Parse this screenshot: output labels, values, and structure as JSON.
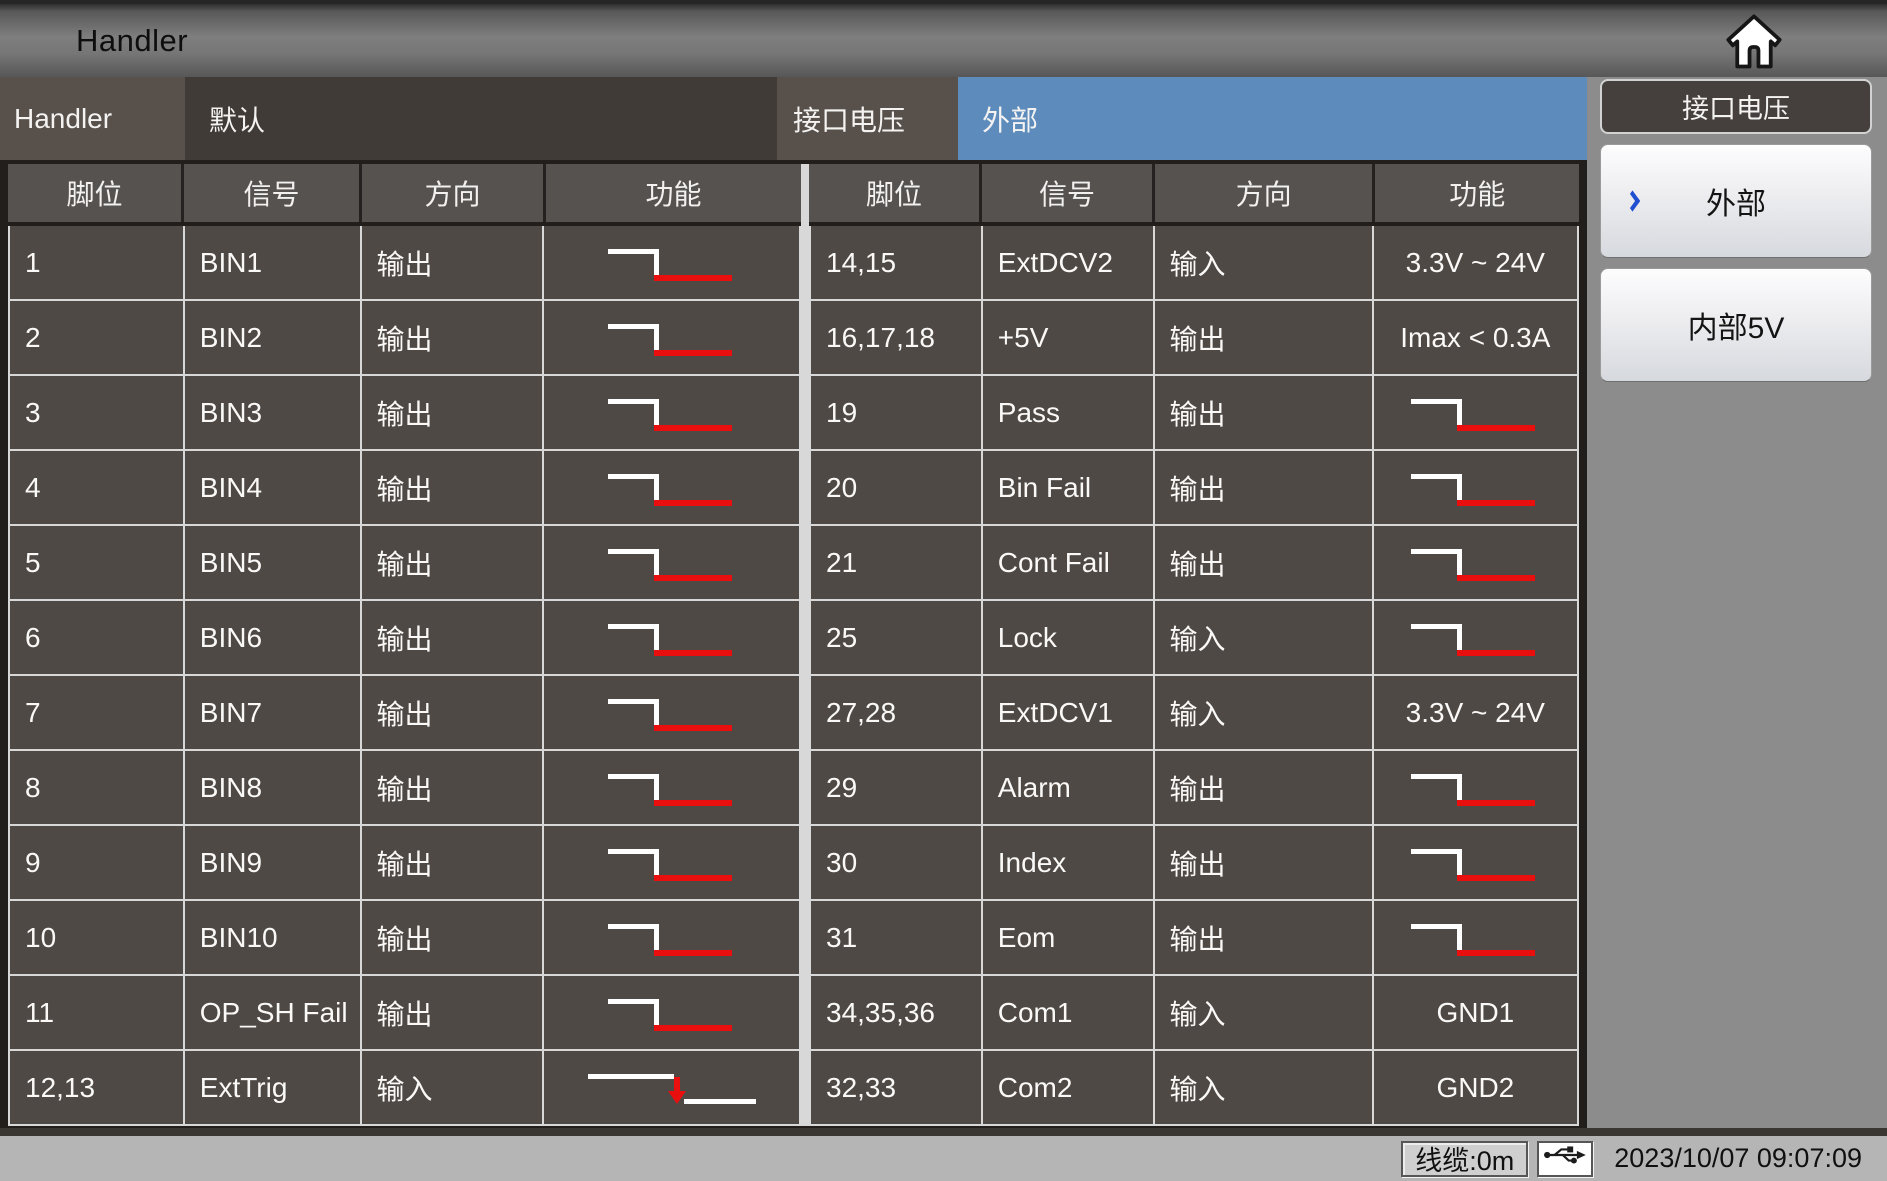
{
  "titlebar": {
    "title": "Handler"
  },
  "tabbar": {
    "handler_tab": "Handler",
    "preset_value": "默认",
    "port_voltage_label": "接口电压",
    "port_voltage_value": "外部"
  },
  "sidebar": {
    "header": "接口电压",
    "buttons": [
      {
        "label": "外部",
        "selected": true
      },
      {
        "label": "内部5V",
        "selected": false
      }
    ]
  },
  "tables": {
    "columns": [
      "脚位",
      "信号",
      "方向",
      "功能"
    ],
    "left": {
      "rows": [
        {
          "pin": "1",
          "signal": "BIN1",
          "direction": "输出",
          "function": {
            "type": "icon",
            "name": "active-low-pulse-icon"
          }
        },
        {
          "pin": "2",
          "signal": "BIN2",
          "direction": "输出",
          "function": {
            "type": "icon",
            "name": "active-low-pulse-icon"
          }
        },
        {
          "pin": "3",
          "signal": "BIN3",
          "direction": "输出",
          "function": {
            "type": "icon",
            "name": "active-low-pulse-icon"
          }
        },
        {
          "pin": "4",
          "signal": "BIN4",
          "direction": "输出",
          "function": {
            "type": "icon",
            "name": "active-low-pulse-icon"
          }
        },
        {
          "pin": "5",
          "signal": "BIN5",
          "direction": "输出",
          "function": {
            "type": "icon",
            "name": "active-low-pulse-icon"
          }
        },
        {
          "pin": "6",
          "signal": "BIN6",
          "direction": "输出",
          "function": {
            "type": "icon",
            "name": "active-low-pulse-icon"
          }
        },
        {
          "pin": "7",
          "signal": "BIN7",
          "direction": "输出",
          "function": {
            "type": "icon",
            "name": "active-low-pulse-icon"
          }
        },
        {
          "pin": "8",
          "signal": "BIN8",
          "direction": "输出",
          "function": {
            "type": "icon",
            "name": "active-low-pulse-icon"
          }
        },
        {
          "pin": "9",
          "signal": "BIN9",
          "direction": "输出",
          "function": {
            "type": "icon",
            "name": "active-low-pulse-icon"
          }
        },
        {
          "pin": "10",
          "signal": "BIN10",
          "direction": "输出",
          "function": {
            "type": "icon",
            "name": "active-low-pulse-icon"
          }
        },
        {
          "pin": "11",
          "signal": "OP_SH Fail",
          "direction": "输出",
          "function": {
            "type": "icon",
            "name": "active-low-pulse-icon"
          }
        },
        {
          "pin": "12,13",
          "signal": "ExtTrig",
          "direction": "输入",
          "function": {
            "type": "icon",
            "name": "falling-edge-trigger-icon"
          }
        }
      ]
    },
    "right": {
      "rows": [
        {
          "pin": "14,15",
          "signal": "ExtDCV2",
          "direction": "输入",
          "function": {
            "type": "text",
            "value": "3.3V ~ 24V"
          }
        },
        {
          "pin": "16,17,18",
          "signal": "+5V",
          "direction": "输出",
          "function": {
            "type": "text",
            "value": "Imax < 0.3A"
          }
        },
        {
          "pin": "19",
          "signal": "Pass",
          "direction": "输出",
          "function": {
            "type": "icon",
            "name": "active-low-pulse-icon"
          }
        },
        {
          "pin": "20",
          "signal": "Bin Fail",
          "direction": "输出",
          "function": {
            "type": "icon",
            "name": "active-low-pulse-icon"
          }
        },
        {
          "pin": "21",
          "signal": "Cont Fail",
          "direction": "输出",
          "function": {
            "type": "icon",
            "name": "active-low-pulse-icon"
          }
        },
        {
          "pin": "25",
          "signal": "Lock",
          "direction": "输入",
          "function": {
            "type": "icon",
            "name": "active-low-pulse-icon"
          }
        },
        {
          "pin": "27,28",
          "signal": "ExtDCV1",
          "direction": "输入",
          "function": {
            "type": "text",
            "value": "3.3V ~ 24V"
          }
        },
        {
          "pin": "29",
          "signal": "Alarm",
          "direction": "输出",
          "function": {
            "type": "icon",
            "name": "active-low-pulse-icon"
          }
        },
        {
          "pin": "30",
          "signal": "Index",
          "direction": "输出",
          "function": {
            "type": "icon",
            "name": "active-low-pulse-icon"
          }
        },
        {
          "pin": "31",
          "signal": "Eom",
          "direction": "输出",
          "function": {
            "type": "icon",
            "name": "active-low-pulse-icon"
          }
        },
        {
          "pin": "34,35,36",
          "signal": "Com1",
          "direction": "输入",
          "function": {
            "type": "text",
            "value": "GND1"
          }
        },
        {
          "pin": "32,33",
          "signal": "Com2",
          "direction": "输入",
          "function": {
            "type": "text",
            "value": "GND2"
          }
        }
      ]
    }
  },
  "statusbar": {
    "cable": "线缆:0m",
    "datetime": "2023/10/07 09:07:09"
  },
  "colors": {
    "selected_tab_blue": "#5d8cbc",
    "chevron_blue": "#2050d0",
    "waveform_red": "#ea0f0f",
    "row_background": "#4e4944",
    "header_background": "#565250",
    "sidebar_gray": "#8c8c8c",
    "statusbar_gray": "#b5b5b5"
  }
}
